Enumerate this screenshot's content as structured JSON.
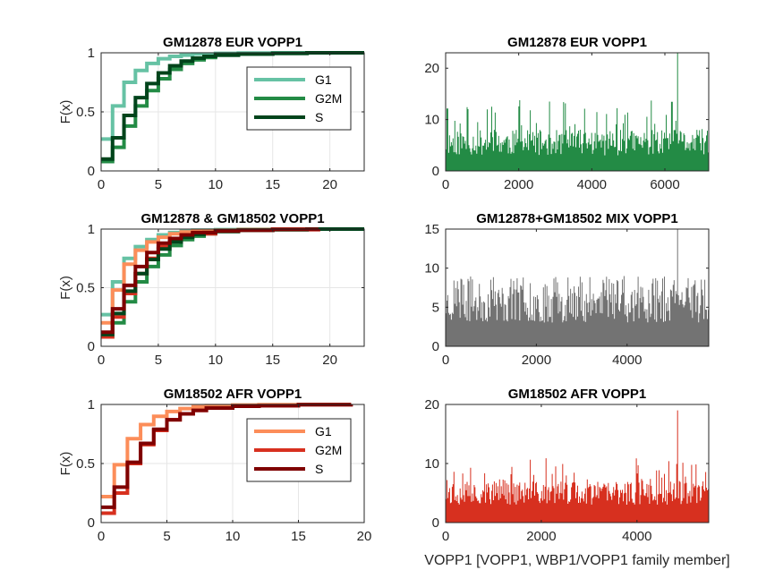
{
  "figure": {
    "bottom_xlabel": "VOPP1 [VOPP1, WBP1/VOPP1 family member]"
  },
  "chart_data": [
    {
      "type": "line",
      "subtype": "ecdf-step",
      "title": "GM12878 EUR VOPP1",
      "ylabel": "F(x)",
      "xlabel": "",
      "xlim": [
        0,
        23
      ],
      "ylim": [
        0,
        1
      ],
      "xticks": [
        0,
        5,
        10,
        15,
        20
      ],
      "yticks": [
        0,
        0.5,
        1
      ],
      "grid": true,
      "legend_position": "top-right",
      "series": [
        {
          "name": "G1",
          "color": "#66c2a4",
          "x": [
            0,
            1,
            2,
            3,
            4,
            5,
            6,
            7,
            8,
            10,
            12,
            15,
            23
          ],
          "y": [
            0.27,
            0.55,
            0.75,
            0.85,
            0.91,
            0.95,
            0.97,
            0.98,
            0.99,
            0.995,
            0.998,
            1.0,
            1.0
          ]
        },
        {
          "name": "G2M",
          "color": "#238b45",
          "x": [
            0,
            1,
            2,
            3,
            4,
            5,
            6,
            7,
            8,
            9,
            10,
            12,
            15,
            18,
            23
          ],
          "y": [
            0.08,
            0.2,
            0.38,
            0.55,
            0.68,
            0.78,
            0.86,
            0.91,
            0.94,
            0.96,
            0.98,
            0.99,
            0.995,
            1.0,
            1.0
          ]
        },
        {
          "name": "S",
          "color": "#00441b",
          "x": [
            0,
            1,
            2,
            3,
            4,
            5,
            6,
            7,
            8,
            9,
            10,
            12,
            15,
            18,
            23
          ],
          "y": [
            0.1,
            0.28,
            0.47,
            0.62,
            0.74,
            0.83,
            0.89,
            0.93,
            0.955,
            0.97,
            0.98,
            0.99,
            0.995,
            1.0,
            1.0
          ]
        }
      ]
    },
    {
      "type": "bar",
      "subtype": "per-cell-counts",
      "title": "GM12878 EUR VOPP1",
      "xlim": [
        0,
        7200
      ],
      "ylim": [
        0,
        23
      ],
      "xticks": [
        0,
        2000,
        4000,
        6000
      ],
      "yticks": [
        0,
        10,
        20
      ],
      "grid": false,
      "color": "#238b45",
      "base_level": 3,
      "typical_max": 8,
      "peak_max": 23,
      "seed": 11
    },
    {
      "type": "line",
      "subtype": "ecdf-step",
      "title": "GM12878 & GM18502 VOPP1",
      "ylabel": "F(x)",
      "xlabel": "",
      "xlim": [
        0,
        23
      ],
      "ylim": [
        0,
        1
      ],
      "xticks": [
        0,
        5,
        10,
        15,
        20
      ],
      "yticks": [
        0,
        0.5,
        1
      ],
      "grid": true,
      "series": [
        {
          "color": "#66c2a4",
          "x": [
            0,
            1,
            2,
            3,
            4,
            5,
            6,
            7,
            8,
            10,
            12,
            15,
            23
          ],
          "y": [
            0.27,
            0.55,
            0.75,
            0.85,
            0.91,
            0.95,
            0.97,
            0.98,
            0.99,
            0.995,
            0.998,
            1.0,
            1.0
          ]
        },
        {
          "color": "#fc8d59",
          "x": [
            0,
            1,
            2,
            3,
            4,
            5,
            6,
            7,
            8,
            10,
            12,
            15,
            19
          ],
          "y": [
            0.2,
            0.48,
            0.7,
            0.82,
            0.89,
            0.93,
            0.96,
            0.975,
            0.985,
            0.99,
            0.995,
            1.0,
            1.0
          ]
        },
        {
          "color": "#238b45",
          "x": [
            0,
            1,
            2,
            3,
            4,
            5,
            6,
            7,
            8,
            9,
            10,
            12,
            15,
            18,
            23
          ],
          "y": [
            0.08,
            0.2,
            0.38,
            0.55,
            0.68,
            0.78,
            0.86,
            0.91,
            0.94,
            0.96,
            0.98,
            0.99,
            0.995,
            1.0,
            1.0
          ]
        },
        {
          "color": "#d7301f",
          "x": [
            0,
            1,
            2,
            3,
            4,
            5,
            6,
            7,
            8,
            10,
            12,
            15,
            19
          ],
          "y": [
            0.08,
            0.25,
            0.45,
            0.62,
            0.75,
            0.85,
            0.9,
            0.94,
            0.96,
            0.98,
            0.99,
            0.995,
            1.0
          ]
        },
        {
          "color": "#00441b",
          "x": [
            0,
            1,
            2,
            3,
            4,
            5,
            6,
            7,
            8,
            9,
            10,
            12,
            15,
            18,
            23
          ],
          "y": [
            0.1,
            0.28,
            0.47,
            0.62,
            0.74,
            0.83,
            0.89,
            0.93,
            0.955,
            0.97,
            0.98,
            0.99,
            0.995,
            1.0,
            1.0
          ]
        },
        {
          "color": "#7f0000",
          "x": [
            0,
            1,
            2,
            3,
            4,
            5,
            6,
            7,
            8,
            10,
            12,
            15,
            19
          ],
          "y": [
            0.12,
            0.32,
            0.52,
            0.68,
            0.8,
            0.88,
            0.92,
            0.95,
            0.97,
            0.985,
            0.99,
            0.998,
            1.0
          ]
        }
      ]
    },
    {
      "type": "bar",
      "subtype": "per-cell-counts",
      "title": "GM12878+GM18502 MIX VOPP1",
      "xlim": [
        0,
        5800
      ],
      "ylim": [
        0,
        15
      ],
      "xticks": [
        0,
        2000,
        4000
      ],
      "yticks": [
        0,
        5,
        10,
        15
      ],
      "grid": false,
      "color": "#737373",
      "base_level": 3,
      "typical_max": 8,
      "peak_max": 15,
      "seed": 23
    },
    {
      "type": "line",
      "subtype": "ecdf-step",
      "title": "GM18502 AFR VOPP1",
      "ylabel": "F(x)",
      "xlabel": "",
      "xlim": [
        0,
        20
      ],
      "ylim": [
        0,
        1
      ],
      "xticks": [
        0,
        5,
        10,
        15,
        20
      ],
      "yticks": [
        0,
        0.5,
        1
      ],
      "grid": true,
      "legend_position": "top-right",
      "series": [
        {
          "name": "G1",
          "color": "#fc8d59",
          "x": [
            0,
            1,
            2,
            3,
            4,
            5,
            6,
            7,
            8,
            10,
            12,
            15,
            19
          ],
          "y": [
            0.22,
            0.49,
            0.71,
            0.83,
            0.9,
            0.94,
            0.965,
            0.98,
            0.99,
            0.995,
            0.998,
            1.0,
            1.0
          ]
        },
        {
          "name": "G2M",
          "color": "#d7301f",
          "x": [
            0,
            1,
            2,
            3,
            4,
            5,
            6,
            7,
            8,
            10,
            12,
            15,
            19
          ],
          "y": [
            0.08,
            0.25,
            0.5,
            0.66,
            0.78,
            0.87,
            0.92,
            0.95,
            0.97,
            0.985,
            0.99,
            0.998,
            1.0
          ]
        },
        {
          "name": "S",
          "color": "#7f0000",
          "x": [
            0,
            1,
            2,
            3,
            4,
            5,
            6,
            7,
            8,
            10,
            12,
            15,
            19
          ],
          "y": [
            0.13,
            0.3,
            0.51,
            0.67,
            0.79,
            0.87,
            0.92,
            0.95,
            0.97,
            0.985,
            0.99,
            0.998,
            1.0
          ]
        }
      ]
    },
    {
      "type": "bar",
      "subtype": "per-cell-counts",
      "title": "GM18502 AFR VOPP1",
      "xlim": [
        0,
        5500
      ],
      "ylim": [
        0,
        20
      ],
      "xticks": [
        0,
        2000,
        4000
      ],
      "yticks": [
        0,
        10,
        20
      ],
      "grid": false,
      "color": "#d7301f",
      "base_level": 3,
      "typical_max": 7,
      "peak_max": 19,
      "seed": 37
    }
  ]
}
